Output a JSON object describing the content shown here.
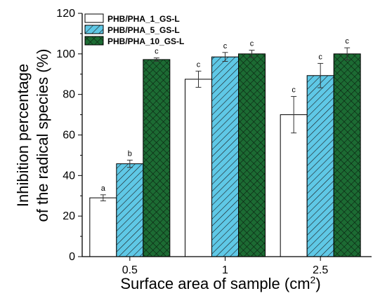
{
  "chart_data": {
    "type": "bar",
    "categories": [
      "0.5",
      "1",
      "2.5"
    ],
    "series": [
      {
        "name": "PHB/PHA_1_GS-L",
        "values": [
          29,
          87.5,
          70
        ],
        "errors": [
          1.5,
          4,
          9
        ],
        "labels": [
          "a",
          "c",
          "c"
        ],
        "color": "#ffffff",
        "pattern": "none"
      },
      {
        "name": "PHB/PHA_5_GS-L",
        "values": [
          45.8,
          98.5,
          89.3
        ],
        "errors": [
          1.8,
          2.2,
          6
        ],
        "labels": [
          "b",
          "c",
          "c"
        ],
        "color": "#5fc8e6",
        "pattern": "diagonal"
      },
      {
        "name": "PHB/PHA_10_GS-L",
        "values": [
          97.2,
          100,
          100
        ],
        "errors": [
          0.8,
          1.8,
          3
        ],
        "labels": [
          "c",
          "c",
          "c"
        ],
        "color": "#1c6b33",
        "pattern": "crosshatch"
      }
    ],
    "ylabel_line1": "Inhibition percentage",
    "ylabel_line2": "of the radical species (%)",
    "xlabel_main": "Surface area of sample (cm",
    "xlabel_sup": "2",
    "xlabel_end": ")",
    "ylim": [
      0,
      120
    ],
    "yticks": [
      0,
      20,
      40,
      60,
      80,
      100,
      120
    ],
    "legend_position": "top-left",
    "grid": false
  }
}
